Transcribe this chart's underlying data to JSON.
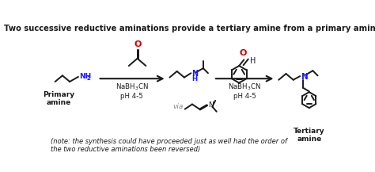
{
  "title": "Two successive reductive aminations provide a tertiary amine from a primary amine",
  "note": "(note: the synthesis could have proceeded just as well had the order of\nthe two reductive aminations been reversed)",
  "bg_color": "#ffffff",
  "title_fontsize": 7.2,
  "note_fontsize": 6.0,
  "label_color_blue": "#1a1aff",
  "label_color_red": "#cc0000",
  "label_color_black": "#1a1a1a",
  "label_color_gray": "#888888",
  "reagent1": "NaBH$_3$CN\npH 4-5",
  "reagent2": "NaBH$_3$CN\npH 4-5",
  "via_text": "via",
  "label_primary": "Primary\namine",
  "label_tertiary": "Tertiary\namine"
}
